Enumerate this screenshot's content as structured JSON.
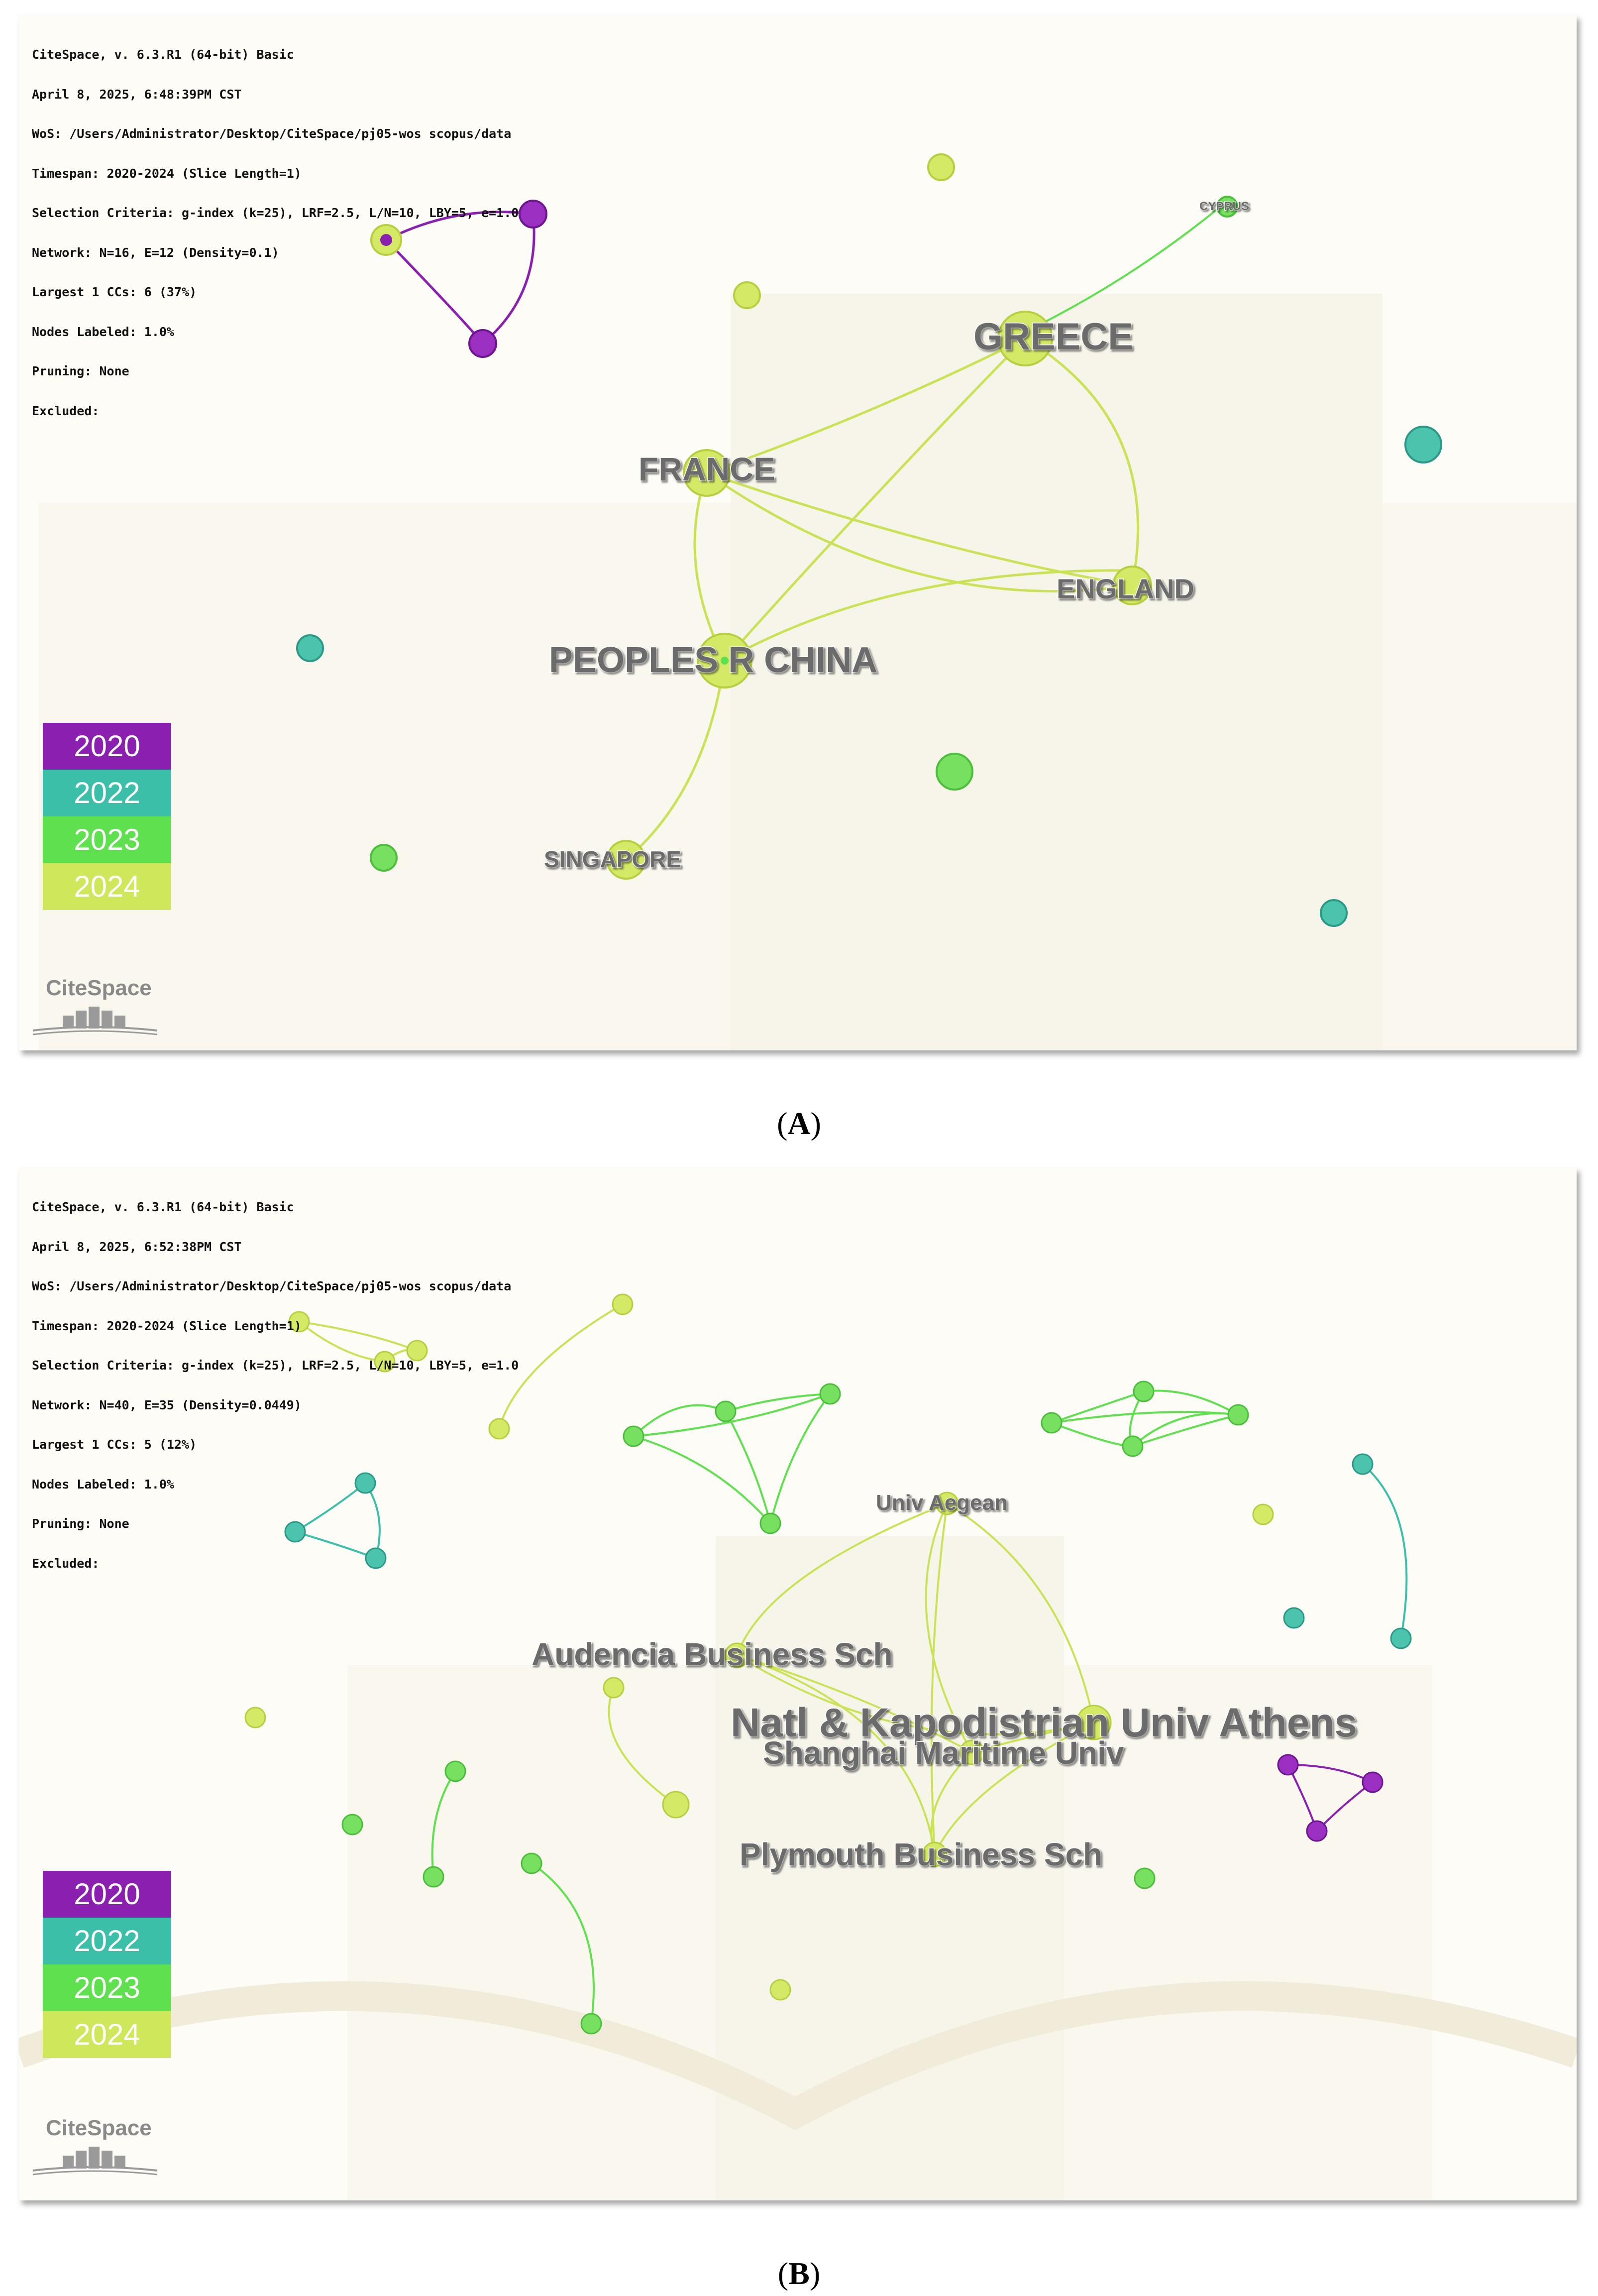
{
  "panelA": {
    "info_lines": [
      "CiteSpace, v. 6.3.R1 (64-bit) Basic",
      "April 8, 2025, 6:48:39PM CST",
      "WoS: /Users/Administrator/Desktop/CiteSpace/pj05-wos scopus/data",
      "Timespan: 2020-2024 (Slice Length=1)",
      "Selection Criteria: g-index (k=25), LRF=2.5, L/N=10, LBY=5, e=1.0",
      "Network: N=16, E=12 (Density=0.1)",
      "Largest 1 CCs: 6 (37%)",
      "Nodes Labeled: 1.0%",
      "Pruning: None",
      "Excluded:"
    ],
    "labels": {
      "greece": "GREECE",
      "france": "FRANCE",
      "england": "ENGLAND",
      "china": "PEOPLES R CHINA",
      "singapore": "SINGAPORE",
      "cyprus": "CYPRUS"
    }
  },
  "panelB": {
    "info_lines": [
      "CiteSpace, v. 6.3.R1 (64-bit) Basic",
      "April 8, 2025, 6:52:38PM CST",
      "WoS: /Users/Administrator/Desktop/CiteSpace/pj05-wos scopus/data",
      "Timespan: 2020-2024 (Slice Length=1)",
      "Selection Criteria: g-index (k=25), LRF=2.5, L/N=10, LBY=5, e=1.0",
      "Network: N=40, E=35 (Density=0.0449)",
      "Largest 1 CCs: 5 (12%)",
      "Nodes Labeled: 1.0%",
      "Pruning: None",
      "Excluded:"
    ],
    "labels": {
      "aegean": "Univ Aegean",
      "audencia": "Audencia Business Sch",
      "athens": "Natl & Kapodistrian Univ Athens",
      "shanghai": "Shanghai Maritime Univ",
      "plymouth": "Plymouth Business Sch"
    }
  },
  "legend": [
    {
      "year": "2020",
      "color": "#8a1fb0"
    },
    {
      "year": "2022",
      "color": "#3bbfa8"
    },
    {
      "year": "2023",
      "color": "#5fe04e"
    },
    {
      "year": "2024",
      "color": "#cfe75a"
    }
  ],
  "logo_text": "CiteSpace",
  "captions": {
    "a": "A",
    "b": "B"
  }
}
